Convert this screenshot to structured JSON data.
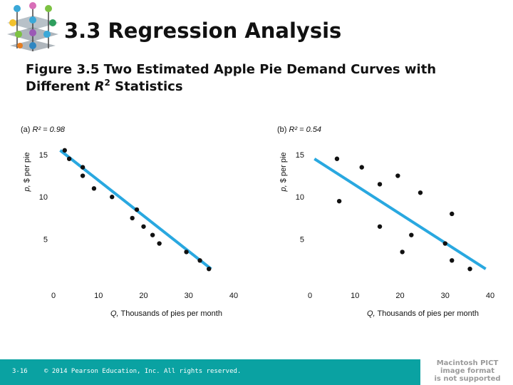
{
  "slide": {
    "title": "3.3 Regression Analysis",
    "figure_caption_pre": "Figure 3.5  Two Estimated Apple Pie Demand Curves with Different ",
    "figure_caption_r": "R",
    "figure_caption_sup": "2",
    "figure_caption_post": " Statistics",
    "logo_icon": "molecule-logo-icon"
  },
  "footer": {
    "slide_number": "3-16",
    "copyright": "© 2014 Pearson Education, Inc. All rights reserved.",
    "background_color": "#0aa2a2"
  },
  "pict_placeholder": [
    "Macintosh PICT",
    "image format",
    "is not supported"
  ],
  "chart_data": [
    {
      "type": "scatter",
      "panel_label": "(a) ",
      "r2_text": "R² = 0.98",
      "xlabel_var": "Q,",
      "xlabel": " Thousands of pies per month",
      "ylabel_var": "p,",
      "ylabel": " $ per pie",
      "xlim": [
        0,
        40
      ],
      "ylim": [
        0,
        16.5
      ],
      "xticks": [
        0,
        10,
        20,
        30,
        40
      ],
      "yticks": [
        5,
        10,
        15
      ],
      "grid": false,
      "point_color": "#111111",
      "line_color": "#29a8e0",
      "points": [
        [
          2.5,
          15.5
        ],
        [
          3.5,
          14.5
        ],
        [
          6.5,
          13.5
        ],
        [
          6.5,
          12.5
        ],
        [
          9,
          11
        ],
        [
          13,
          10
        ],
        [
          17.5,
          7.5
        ],
        [
          18.5,
          8.5
        ],
        [
          20,
          6.5
        ],
        [
          22,
          5.5
        ],
        [
          23.5,
          4.5
        ],
        [
          29.5,
          3.5
        ],
        [
          32.5,
          2.5
        ],
        [
          34.5,
          1.5
        ]
      ],
      "fit_line": [
        [
          1.5,
          15.5
        ],
        [
          35,
          1.5
        ]
      ]
    },
    {
      "type": "scatter",
      "panel_label": "(b) ",
      "r2_text": "R² = 0.54",
      "xlabel_var": "Q,",
      "xlabel": " Thousands of pies per month",
      "ylabel_var": "p,",
      "ylabel": " $ per pie",
      "xlim": [
        0,
        40
      ],
      "ylim": [
        0,
        16.5
      ],
      "xticks": [
        0,
        10,
        20,
        30,
        40
      ],
      "yticks": [
        5,
        10,
        15
      ],
      "grid": false,
      "point_color": "#111111",
      "line_color": "#29a8e0",
      "points": [
        [
          6,
          14.5
        ],
        [
          6.5,
          9.5
        ],
        [
          11.5,
          13.5
        ],
        [
          15.5,
          11.5
        ],
        [
          15.5,
          6.5
        ],
        [
          19.5,
          12.5
        ],
        [
          20.5,
          3.5
        ],
        [
          22.5,
          5.5
        ],
        [
          24.5,
          10.5
        ],
        [
          30,
          4.5
        ],
        [
          31.5,
          8
        ],
        [
          31.5,
          2.5
        ],
        [
          35.5,
          1.5
        ]
      ],
      "fit_line": [
        [
          1,
          14.5
        ],
        [
          39,
          1.5
        ]
      ]
    }
  ]
}
